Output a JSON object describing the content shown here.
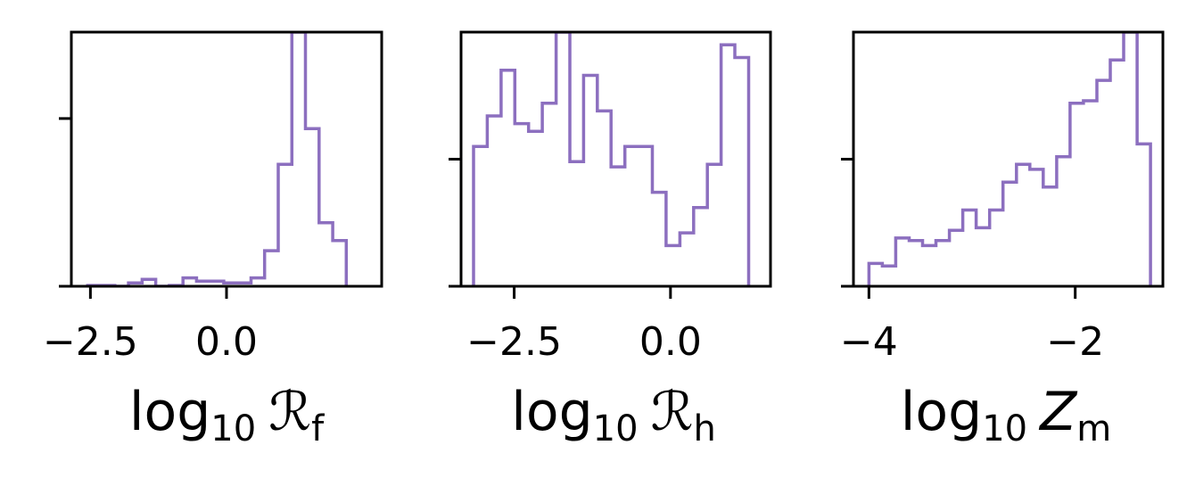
{
  "colors": {
    "series": "#8c6fbf",
    "axes": "#000000",
    "background": "#ffffff"
  },
  "chart_data": [
    {
      "type": "histogram",
      "xlabel": {
        "base": "log",
        "sub": "10",
        "sym": "ℛ",
        "symsub": "f",
        "italic": false
      },
      "xlim": [
        -2.85,
        2.85
      ],
      "ylim": [
        0,
        1
      ],
      "xticks": [
        -2.5,
        0.0
      ],
      "xtick_labels": [
        "−2.5",
        "0.0"
      ],
      "yticks": [
        0.66
      ],
      "ytick_labels": [],
      "bin_edges": [
        -2.55,
        -2.3,
        -2.05,
        -1.8,
        -1.55,
        -1.3,
        -1.05,
        -0.8,
        -0.55,
        -0.3,
        -0.05,
        0.2,
        0.45,
        0.7,
        0.95,
        1.2,
        1.45,
        1.7,
        1.95,
        2.2
      ],
      "counts": [
        0.003,
        0.003,
        0.0,
        0.013,
        0.027,
        0.0,
        0.003,
        0.033,
        0.02,
        0.02,
        0.013,
        0.013,
        0.033,
        0.14,
        0.48,
        1.0,
        0.62,
        0.25,
        0.18
      ],
      "grid": false
    },
    {
      "type": "histogram",
      "xlabel": {
        "base": "log",
        "sub": "10",
        "sym": "ℛ",
        "symsub": "h",
        "italic": false
      },
      "xlim": [
        -3.35,
        1.6
      ],
      "ylim": [
        0,
        1
      ],
      "xticks": [
        -2.5,
        0.0
      ],
      "xtick_labels": [
        "−2.5",
        "0.0"
      ],
      "yticks": [
        0.5
      ],
      "ytick_labels": [],
      "bin_edges": [
        -3.15,
        -2.93,
        -2.71,
        -2.49,
        -2.27,
        -2.05,
        -1.83,
        -1.61,
        -1.39,
        -1.17,
        -0.95,
        -0.73,
        -0.51,
        -0.29,
        -0.07,
        0.15,
        0.37,
        0.59,
        0.81,
        1.03,
        1.25
      ],
      "counts": [
        0.55,
        0.67,
        0.85,
        0.64,
        0.61,
        0.72,
        1.0,
        0.49,
        0.83,
        0.69,
        0.47,
        0.55,
        0.55,
        0.37,
        0.16,
        0.21,
        0.31,
        0.48,
        0.95,
        0.9
      ],
      "grid": false
    },
    {
      "type": "histogram",
      "xlabel": {
        "base": "log",
        "sub": "10",
        "sym": "Z",
        "symsub": "m",
        "italic": true
      },
      "xlim": [
        -4.15,
        -1.15
      ],
      "ylim": [
        0,
        1
      ],
      "xticks": [
        -4,
        -2
      ],
      "xtick_labels": [
        "−4",
        "−2"
      ],
      "yticks": [
        0.5
      ],
      "ytick_labels": [],
      "bin_edges": [
        -4.0,
        -3.87,
        -3.74,
        -3.61,
        -3.48,
        -3.35,
        -3.22,
        -3.09,
        -2.96,
        -2.83,
        -2.7,
        -2.57,
        -2.44,
        -2.31,
        -2.18,
        -2.05,
        -1.92,
        -1.79,
        -1.66,
        -1.53,
        -1.4,
        -1.27
      ],
      "counts": [
        0.09,
        0.08,
        0.19,
        0.18,
        0.16,
        0.18,
        0.22,
        0.3,
        0.23,
        0.3,
        0.41,
        0.48,
        0.46,
        0.39,
        0.51,
        0.72,
        0.73,
        0.81,
        0.89,
        1.0,
        0.56
      ],
      "grid": false
    }
  ]
}
